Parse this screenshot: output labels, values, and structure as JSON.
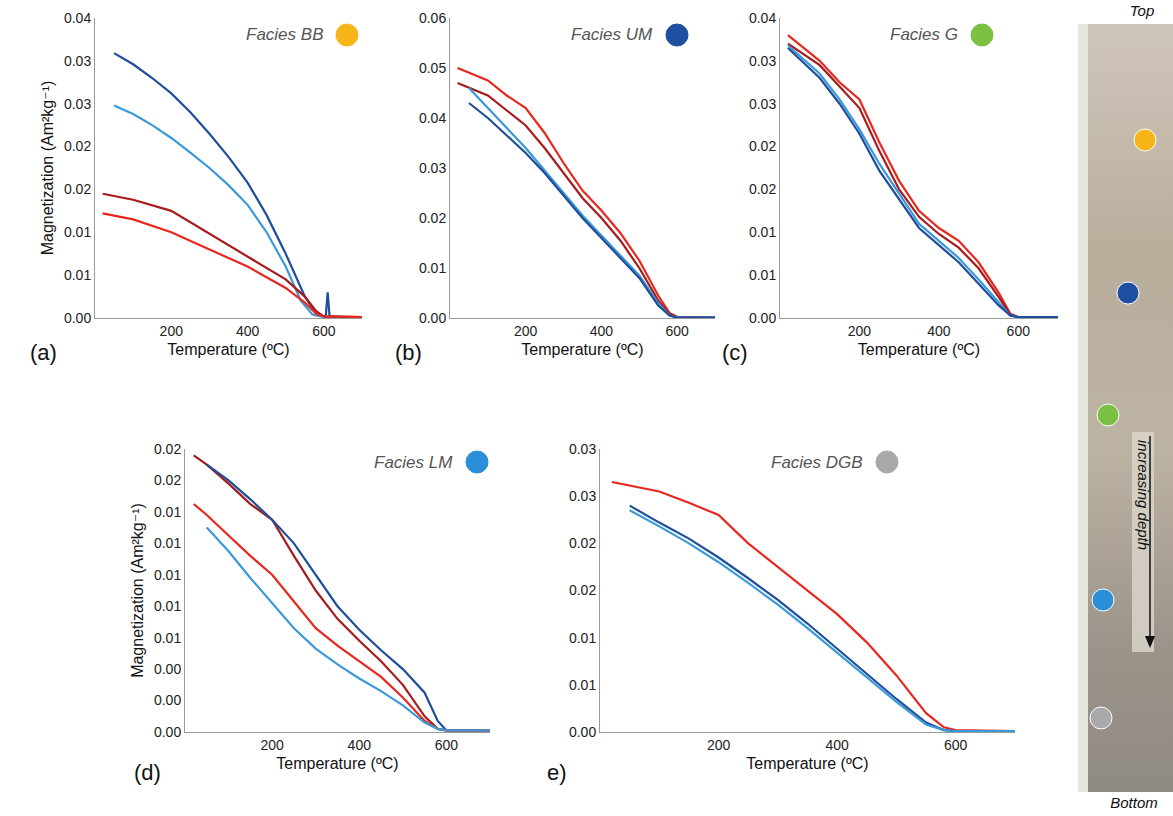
{
  "chart_data": [
    {
      "type": "line",
      "panel": "(a)",
      "annotation": {
        "text": "Facies BB",
        "color": "#f7b519"
      },
      "x_label": "Temperature (ºC)",
      "y_label": "Magnetization (Am²kg⁻¹)",
      "xlim": [
        0,
        700
      ],
      "xticks": [
        200,
        400,
        600
      ],
      "ylim": [
        0,
        0.035
      ],
      "yticks": [
        {
          "value": 0,
          "label": "0.00"
        },
        {
          "value": 0.005,
          "label": "0.01"
        },
        0.01,
        {
          "value": 0.015,
          "label": "0.02"
        },
        0.02,
        {
          "value": 0.025,
          "label": "0.03"
        },
        0.03,
        {
          "value": 0.035,
          "label": "0.04"
        }
      ],
      "series": [
        {
          "color": "#1f4e9c",
          "x": [
            50,
            100,
            150,
            200,
            250,
            300,
            350,
            400,
            450,
            500,
            550,
            580,
            600,
            605,
            610,
            615,
            650,
            700
          ],
          "values": [
            0.0309,
            0.0296,
            0.028,
            0.0262,
            0.024,
            0.0215,
            0.0188,
            0.0158,
            0.012,
            0.0075,
            0.0025,
            0.0005,
            0.0002,
            0.0002,
            0.003,
            0.0002,
            0.0001,
            0.0001
          ]
        },
        {
          "color": "#3a9ad9",
          "x": [
            50,
            100,
            150,
            200,
            250,
            300,
            350,
            400,
            450,
            500,
            540,
            570,
            600,
            700
          ],
          "values": [
            0.0248,
            0.0238,
            0.0225,
            0.021,
            0.0193,
            0.0175,
            0.0155,
            0.0132,
            0.01,
            0.006,
            0.002,
            0.0004,
            0.0001,
            0.0001
          ]
        },
        {
          "color": "#a61c1c",
          "x": [
            20,
            100,
            200,
            300,
            400,
            500,
            550,
            580,
            600,
            700
          ],
          "values": [
            0.0145,
            0.0138,
            0.0125,
            0.0098,
            0.0072,
            0.0045,
            0.0025,
            0.0008,
            0.0002,
            0.0001
          ]
        },
        {
          "color": "#e8281e",
          "x": [
            20,
            100,
            200,
            300,
            400,
            500,
            550,
            580,
            600,
            700
          ],
          "values": [
            0.0122,
            0.0115,
            0.01,
            0.008,
            0.006,
            0.0035,
            0.0018,
            0.0005,
            0.0002,
            0.0001
          ]
        }
      ]
    },
    {
      "type": "line",
      "panel": "(b)",
      "annotation": {
        "text": "Facies UM",
        "color": "#1f4fa0"
      },
      "x_label": "Temperature (ºC)",
      "xlim": [
        0,
        700
      ],
      "xticks": [
        200,
        400,
        600
      ],
      "ylim": [
        0,
        0.06
      ],
      "yticks": [
        {
          "value": 0,
          "label": "0.00"
        },
        0.01,
        0.02,
        0.03,
        0.04,
        0.05,
        0.06
      ],
      "series": [
        {
          "color": "#e8281e",
          "x": [
            20,
            100,
            150,
            200,
            250,
            300,
            350,
            400,
            450,
            500,
            550,
            580,
            600,
            700
          ],
          "values": [
            0.05,
            0.0475,
            0.0445,
            0.042,
            0.037,
            0.031,
            0.0255,
            0.0215,
            0.017,
            0.0115,
            0.0045,
            0.001,
            0.0002,
            0.0001
          ]
        },
        {
          "color": "#a61c1c",
          "x": [
            20,
            100,
            150,
            200,
            250,
            300,
            350,
            400,
            450,
            500,
            550,
            580,
            600,
            700
          ],
          "values": [
            0.047,
            0.0445,
            0.0415,
            0.0385,
            0.034,
            0.029,
            0.024,
            0.02,
            0.0155,
            0.01,
            0.0035,
            0.0008,
            0.0002,
            0.0001
          ]
        },
        {
          "color": "#3a9ad9",
          "x": [
            50,
            100,
            150,
            200,
            250,
            300,
            350,
            400,
            450,
            500,
            550,
            580,
            600,
            700
          ],
          "values": [
            0.046,
            0.042,
            0.038,
            0.034,
            0.0295,
            0.025,
            0.0205,
            0.0165,
            0.0125,
            0.0085,
            0.003,
            0.0005,
            0.0001,
            0.0001
          ]
        },
        {
          "color": "#1f4e9c",
          "x": [
            50,
            100,
            150,
            200,
            250,
            300,
            350,
            400,
            450,
            500,
            550,
            580,
            600,
            700
          ],
          "values": [
            0.043,
            0.04,
            0.0365,
            0.033,
            0.029,
            0.0245,
            0.02,
            0.016,
            0.012,
            0.008,
            0.0025,
            0.0005,
            0.0001,
            0.0001
          ]
        }
      ]
    },
    {
      "type": "line",
      "panel": "(c)",
      "annotation": {
        "text": "Facies G",
        "color": "#7cc143"
      },
      "x_label": "Temperature (ºC)",
      "xlim": [
        0,
        700
      ],
      "xticks": [
        200,
        400,
        600
      ],
      "ylim": [
        0,
        0.035
      ],
      "yticks": [
        {
          "value": 0,
          "label": "0.00"
        },
        {
          "value": 0.005,
          "label": "0.01"
        },
        0.01,
        {
          "value": 0.015,
          "label": "0.02"
        },
        0.02,
        {
          "value": 0.025,
          "label": "0.03"
        },
        0.03,
        {
          "value": 0.035,
          "label": "0.04"
        }
      ],
      "series": [
        {
          "color": "#e8281e",
          "x": [
            20,
            100,
            150,
            200,
            250,
            300,
            350,
            400,
            450,
            500,
            550,
            580,
            600,
            700
          ],
          "values": [
            0.033,
            0.03,
            0.0275,
            0.0255,
            0.0205,
            0.016,
            0.0125,
            0.0105,
            0.009,
            0.0065,
            0.003,
            0.0005,
            0.0001,
            0.0001
          ]
        },
        {
          "color": "#a61c1c",
          "x": [
            20,
            100,
            150,
            200,
            250,
            300,
            350,
            400,
            450,
            500,
            550,
            580,
            600,
            700
          ],
          "values": [
            0.032,
            0.0295,
            0.027,
            0.0245,
            0.0195,
            0.015,
            0.0118,
            0.0098,
            0.0082,
            0.0058,
            0.0025,
            0.0004,
            0.0001,
            0.0001
          ]
        },
        {
          "color": "#3a9ad9",
          "x": [
            20,
            100,
            150,
            200,
            250,
            300,
            350,
            400,
            450,
            500,
            550,
            580,
            600,
            700
          ],
          "values": [
            0.0318,
            0.0285,
            0.0255,
            0.022,
            0.018,
            0.0145,
            0.011,
            0.009,
            0.007,
            0.0045,
            0.0018,
            0.0003,
            0.0001,
            0.0001
          ]
        },
        {
          "color": "#1f4e9c",
          "x": [
            20,
            100,
            150,
            200,
            250,
            300,
            350,
            400,
            450,
            500,
            550,
            580,
            600,
            700
          ],
          "values": [
            0.0315,
            0.028,
            0.025,
            0.0215,
            0.0172,
            0.0138,
            0.0105,
            0.0085,
            0.0065,
            0.004,
            0.0015,
            0.0003,
            0.0001,
            0.0001
          ]
        }
      ]
    },
    {
      "type": "line",
      "panel": "(d)",
      "annotation": {
        "text": "Facies LM",
        "color": "#2a8fd8"
      },
      "x_label": "Temperature (ºC)",
      "y_label": "Magnetization (Am²kg⁻¹)",
      "xlim": [
        0,
        700
      ],
      "xticks": [
        200,
        400,
        600
      ],
      "ylim": [
        0,
        0.018
      ],
      "yticks": [
        {
          "value": 0,
          "label": "0.00"
        },
        {
          "value": 0.002,
          "label": "0.00"
        },
        {
          "value": 0.004,
          "label": "0.00"
        },
        {
          "value": 0.006,
          "label": "0.01"
        },
        {
          "value": 0.008,
          "label": "0.01"
        },
        0.01,
        {
          "value": 0.012,
          "label": "0.01"
        },
        {
          "value": 0.014,
          "label": "0.01"
        },
        {
          "value": 0.016,
          "label": "0.02"
        },
        {
          "value": 0.018,
          "label": "0.02"
        }
      ],
      "series": [
        {
          "color": "#a61c1c",
          "x": [
            20,
            50,
            100,
            150,
            200,
            250,
            300,
            350,
            400,
            450,
            500,
            550,
            580,
            600,
            700
          ],
          "values": [
            0.0176,
            0.017,
            0.0158,
            0.0145,
            0.0135,
            0.0112,
            0.009,
            0.0072,
            0.0058,
            0.0045,
            0.003,
            0.001,
            0.0002,
            0.0001,
            0.0001
          ]
        },
        {
          "color": "#1f4e9c",
          "x": [
            50,
            100,
            150,
            200,
            250,
            300,
            350,
            400,
            450,
            500,
            550,
            580,
            600,
            700
          ],
          "values": [
            0.017,
            0.016,
            0.0148,
            0.0135,
            0.012,
            0.01,
            0.008,
            0.0065,
            0.0052,
            0.004,
            0.0025,
            0.0007,
            0.0001,
            0.0001
          ]
        },
        {
          "color": "#e8281e",
          "x": [
            20,
            50,
            100,
            150,
            200,
            250,
            300,
            350,
            400,
            450,
            500,
            550,
            580,
            600,
            700
          ],
          "values": [
            0.0145,
            0.0138,
            0.0125,
            0.0112,
            0.01,
            0.0083,
            0.0066,
            0.0055,
            0.0045,
            0.0035,
            0.0022,
            0.0007,
            0.0002,
            0.0001,
            0.0001
          ]
        },
        {
          "color": "#3a9ad9",
          "x": [
            50,
            100,
            150,
            200,
            250,
            300,
            350,
            400,
            450,
            500,
            550,
            580,
            600,
            700
          ],
          "values": [
            0.013,
            0.0115,
            0.0098,
            0.0082,
            0.0066,
            0.0053,
            0.0043,
            0.0034,
            0.0026,
            0.0017,
            0.0006,
            0.0002,
            0.0001,
            0.0001
          ]
        }
      ]
    },
    {
      "type": "line",
      "panel": "e)",
      "annotation": {
        "text": "Facies DGB",
        "color": "#a9a9a9"
      },
      "x_label": "Temperature (ºC)",
      "xlim": [
        0,
        700
      ],
      "xticks": [
        200,
        400,
        600
      ],
      "ylim": [
        0,
        0.03
      ],
      "yticks": [
        {
          "value": 0,
          "label": "0.00"
        },
        {
          "value": 0.005,
          "label": "0.01"
        },
        0.01,
        {
          "value": 0.015,
          "label": "0.02"
        },
        0.02,
        {
          "value": 0.025,
          "label": "0.03"
        },
        0.03
      ],
      "series": [
        {
          "color": "#e8281e",
          "x": [
            20,
            100,
            150,
            200,
            250,
            300,
            350,
            400,
            450,
            500,
            550,
            580,
            600,
            700
          ],
          "values": [
            0.0265,
            0.0255,
            0.0243,
            0.023,
            0.02,
            0.0175,
            0.015,
            0.0125,
            0.0095,
            0.006,
            0.002,
            0.0005,
            0.0002,
            0.0001
          ]
        },
        {
          "color": "#1f4e9c",
          "x": [
            50,
            100,
            150,
            200,
            250,
            300,
            350,
            400,
            450,
            500,
            550,
            580,
            600,
            700
          ],
          "values": [
            0.024,
            0.0222,
            0.0205,
            0.0185,
            0.0163,
            0.014,
            0.0115,
            0.0088,
            0.0062,
            0.0035,
            0.001,
            0.0002,
            0.0001,
            0.0001
          ]
        },
        {
          "color": "#3a9ad9",
          "x": [
            50,
            100,
            150,
            200,
            250,
            300,
            350,
            400,
            450,
            500,
            550,
            580,
            600,
            700
          ],
          "values": [
            0.0235,
            0.0218,
            0.02,
            0.018,
            0.0158,
            0.0135,
            0.011,
            0.0084,
            0.0058,
            0.0032,
            0.0008,
            0.0002,
            0.0001,
            0.0001
          ]
        }
      ]
    }
  ],
  "core": {
    "top_label": "Top",
    "bottom_label": "Bottom",
    "depth_label": "increasing depth",
    "markers": [
      {
        "facies": "BB",
        "color": "#f7b519"
      },
      {
        "facies": "UM",
        "color": "#1f4fa0"
      },
      {
        "facies": "G",
        "color": "#7cc143"
      },
      {
        "facies": "LM",
        "color": "#2a8fd8"
      },
      {
        "facies": "DGB",
        "color": "#a9a9a9"
      }
    ]
  }
}
